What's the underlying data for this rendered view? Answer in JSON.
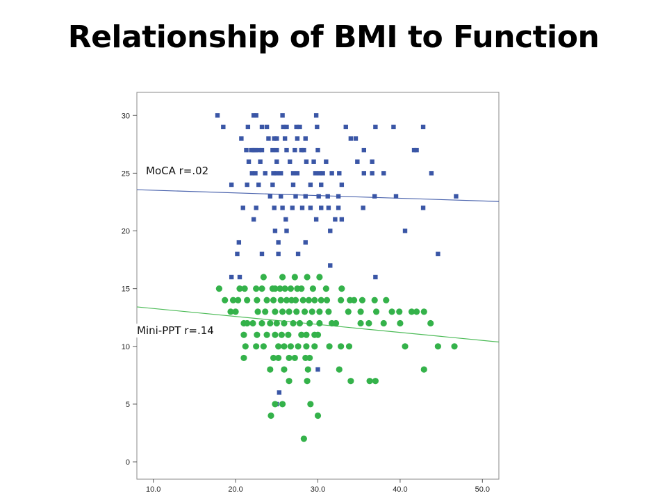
{
  "slide": {
    "title": "Relationship of BMI to Function"
  },
  "chart_data": {
    "type": "scatter",
    "title": "",
    "xlabel": "",
    "ylabel": "",
    "xlim": [
      8,
      52
    ],
    "ylim": [
      -1.5,
      32
    ],
    "x_ticks": [
      10,
      20,
      30,
      40,
      50
    ],
    "x_tick_labels": [
      "10.0",
      "20.0",
      "30.0",
      "40.0",
      "50.0"
    ],
    "y_ticks": [
      0,
      5,
      10,
      15,
      20,
      25,
      30
    ],
    "y_tick_labels": [
      "0",
      "5",
      "10",
      "15",
      "20",
      "25",
      "30"
    ],
    "grid": false,
    "plot_background": "#ffffff",
    "frame_color": "#888888",
    "series": [
      {
        "name": "MoCA",
        "marker": "square",
        "color": "#3a56a6",
        "points": [
          [
            17.8,
            30
          ],
          [
            22.2,
            30
          ],
          [
            22.5,
            30
          ],
          [
            25.7,
            30
          ],
          [
            29.8,
            30
          ],
          [
            18.5,
            29
          ],
          [
            21.5,
            29
          ],
          [
            23.2,
            29
          ],
          [
            23.8,
            29
          ],
          [
            25.8,
            29
          ],
          [
            26.2,
            29
          ],
          [
            27.4,
            29
          ],
          [
            27.8,
            29
          ],
          [
            29.9,
            29
          ],
          [
            33.4,
            29
          ],
          [
            37.0,
            29
          ],
          [
            39.2,
            29
          ],
          [
            42.8,
            29
          ],
          [
            20.7,
            28
          ],
          [
            24.0,
            28
          ],
          [
            24.7,
            28
          ],
          [
            25.0,
            28
          ],
          [
            26.0,
            28
          ],
          [
            27.5,
            28
          ],
          [
            28.5,
            28
          ],
          [
            34.0,
            28
          ],
          [
            34.6,
            28
          ],
          [
            22.2,
            27
          ],
          [
            23.2,
            27
          ],
          [
            25.0,
            27
          ],
          [
            26.2,
            27
          ],
          [
            28.0,
            27
          ],
          [
            21.3,
            27
          ],
          [
            21.9,
            27
          ],
          [
            22.4,
            27
          ],
          [
            22.8,
            27
          ],
          [
            24.5,
            27
          ],
          [
            27.2,
            27
          ],
          [
            28.3,
            27
          ],
          [
            30.0,
            27
          ],
          [
            35.6,
            27
          ],
          [
            41.7,
            27
          ],
          [
            42.0,
            27
          ],
          [
            21.6,
            26
          ],
          [
            23.0,
            26
          ],
          [
            25.0,
            26
          ],
          [
            26.6,
            26
          ],
          [
            28.6,
            26
          ],
          [
            29.5,
            26
          ],
          [
            31.0,
            26
          ],
          [
            34.8,
            26
          ],
          [
            36.6,
            26
          ],
          [
            22.0,
            25
          ],
          [
            22.4,
            25
          ],
          [
            23.6,
            25
          ],
          [
            24.6,
            25
          ],
          [
            25.0,
            25
          ],
          [
            25.5,
            25
          ],
          [
            27.0,
            25
          ],
          [
            27.5,
            25
          ],
          [
            29.7,
            25
          ],
          [
            30.2,
            25
          ],
          [
            30.6,
            25
          ],
          [
            31.7,
            25
          ],
          [
            32.6,
            25
          ],
          [
            35.6,
            25
          ],
          [
            36.6,
            25
          ],
          [
            38.0,
            25
          ],
          [
            43.8,
            25
          ],
          [
            19.5,
            24
          ],
          [
            21.4,
            24
          ],
          [
            22.8,
            24
          ],
          [
            24.5,
            24
          ],
          [
            27.0,
            24
          ],
          [
            29.1,
            24
          ],
          [
            30.4,
            24
          ],
          [
            32.9,
            24
          ],
          [
            24.2,
            23
          ],
          [
            25.5,
            23
          ],
          [
            27.3,
            23
          ],
          [
            28.5,
            23
          ],
          [
            30.1,
            23
          ],
          [
            31.2,
            23
          ],
          [
            32.5,
            23
          ],
          [
            36.9,
            23
          ],
          [
            39.5,
            23
          ],
          [
            46.8,
            23
          ],
          [
            20.9,
            22
          ],
          [
            22.5,
            22
          ],
          [
            24.7,
            22
          ],
          [
            25.7,
            22
          ],
          [
            26.9,
            22
          ],
          [
            28.1,
            22
          ],
          [
            29.1,
            22
          ],
          [
            30.4,
            22
          ],
          [
            31.3,
            22
          ],
          [
            32.5,
            22
          ],
          [
            35.5,
            22
          ],
          [
            42.8,
            22
          ],
          [
            22.2,
            21
          ],
          [
            26.1,
            21
          ],
          [
            29.8,
            21
          ],
          [
            32.1,
            21
          ],
          [
            32.9,
            21
          ],
          [
            24.8,
            20
          ],
          [
            26.2,
            20
          ],
          [
            31.5,
            20
          ],
          [
            40.6,
            20
          ],
          [
            20.4,
            19
          ],
          [
            25.2,
            19
          ],
          [
            28.5,
            19
          ],
          [
            20.2,
            18
          ],
          [
            23.2,
            18
          ],
          [
            25.2,
            18
          ],
          [
            27.6,
            18
          ],
          [
            44.6,
            18
          ],
          [
            31.5,
            17
          ],
          [
            19.5,
            16
          ],
          [
            20.5,
            16
          ],
          [
            37.0,
            16
          ],
          [
            30.0,
            8
          ],
          [
            25.3,
            6
          ],
          [
            25.0,
            5
          ]
        ],
        "trend": {
          "label": "MoCA r=.02",
          "color": "#4a63ad",
          "x": [
            8,
            52
          ],
          "y": [
            23.57,
            22.55
          ]
        }
      },
      {
        "name": "Mini-PPT",
        "marker": "circle",
        "color": "#34b24a",
        "points": [
          [
            18.0,
            15
          ],
          [
            20.5,
            15
          ],
          [
            21.1,
            15
          ],
          [
            22.5,
            15
          ],
          [
            23.2,
            15
          ],
          [
            24.5,
            15
          ],
          [
            24.8,
            15
          ],
          [
            25.4,
            15
          ],
          [
            26.0,
            15
          ],
          [
            26.7,
            15
          ],
          [
            27.5,
            15
          ],
          [
            28.0,
            15
          ],
          [
            29.4,
            15
          ],
          [
            31.0,
            15
          ],
          [
            32.9,
            15
          ],
          [
            23.4,
            16
          ],
          [
            25.7,
            16
          ],
          [
            27.2,
            16
          ],
          [
            28.7,
            16
          ],
          [
            30.2,
            16
          ],
          [
            18.7,
            14
          ],
          [
            19.7,
            14
          ],
          [
            20.3,
            14
          ],
          [
            21.4,
            14
          ],
          [
            22.6,
            14
          ],
          [
            23.8,
            14
          ],
          [
            24.6,
            14
          ],
          [
            25.5,
            14
          ],
          [
            26.2,
            14
          ],
          [
            26.8,
            14
          ],
          [
            27.3,
            14
          ],
          [
            28.2,
            14
          ],
          [
            28.9,
            14
          ],
          [
            29.6,
            14
          ],
          [
            30.4,
            14
          ],
          [
            31.1,
            14
          ],
          [
            32.8,
            14
          ],
          [
            33.9,
            14
          ],
          [
            34.4,
            14
          ],
          [
            35.4,
            14
          ],
          [
            36.9,
            14
          ],
          [
            38.3,
            14
          ],
          [
            19.4,
            13
          ],
          [
            20.0,
            13
          ],
          [
            22.7,
            13
          ],
          [
            23.6,
            13
          ],
          [
            24.8,
            13
          ],
          [
            25.7,
            13
          ],
          [
            26.5,
            13
          ],
          [
            27.4,
            13
          ],
          [
            28.4,
            13
          ],
          [
            29.3,
            13
          ],
          [
            30.2,
            13
          ],
          [
            31.3,
            13
          ],
          [
            33.7,
            13
          ],
          [
            35.2,
            13
          ],
          [
            37.1,
            13
          ],
          [
            39.0,
            13
          ],
          [
            39.9,
            13
          ],
          [
            41.4,
            13
          ],
          [
            42.0,
            13
          ],
          [
            42.9,
            13
          ],
          [
            21.0,
            12
          ],
          [
            21.4,
            12
          ],
          [
            22.1,
            12
          ],
          [
            23.2,
            12
          ],
          [
            24.2,
            12
          ],
          [
            25.0,
            12
          ],
          [
            25.9,
            12
          ],
          [
            27.0,
            12
          ],
          [
            27.8,
            12
          ],
          [
            29.0,
            12
          ],
          [
            30.2,
            12
          ],
          [
            31.7,
            12
          ],
          [
            32.2,
            12
          ],
          [
            35.2,
            12
          ],
          [
            36.2,
            12
          ],
          [
            38.0,
            12
          ],
          [
            40.0,
            12
          ],
          [
            43.7,
            12
          ],
          [
            21.0,
            11
          ],
          [
            22.6,
            11
          ],
          [
            23.8,
            11
          ],
          [
            24.8,
            11
          ],
          [
            25.6,
            11
          ],
          [
            26.4,
            11
          ],
          [
            28.0,
            11
          ],
          [
            28.6,
            11
          ],
          [
            29.6,
            11
          ],
          [
            30.0,
            11
          ],
          [
            21.2,
            10
          ],
          [
            22.5,
            10
          ],
          [
            23.4,
            10
          ],
          [
            25.2,
            10
          ],
          [
            25.9,
            10
          ],
          [
            26.7,
            10
          ],
          [
            27.6,
            10
          ],
          [
            28.6,
            10
          ],
          [
            29.6,
            10
          ],
          [
            31.4,
            10
          ],
          [
            32.8,
            10
          ],
          [
            33.8,
            10
          ],
          [
            40.6,
            10
          ],
          [
            44.6,
            10
          ],
          [
            46.6,
            10
          ],
          [
            21.0,
            9
          ],
          [
            24.6,
            9
          ],
          [
            25.2,
            9
          ],
          [
            26.5,
            9
          ],
          [
            27.2,
            9
          ],
          [
            28.5,
            9
          ],
          [
            29.0,
            9
          ],
          [
            24.2,
            8
          ],
          [
            25.9,
            8
          ],
          [
            28.8,
            8
          ],
          [
            32.6,
            8
          ],
          [
            42.9,
            8
          ],
          [
            26.5,
            7
          ],
          [
            28.7,
            7
          ],
          [
            34.0,
            7
          ],
          [
            36.3,
            7
          ],
          [
            37.0,
            7
          ],
          [
            24.8,
            5
          ],
          [
            25.7,
            5
          ],
          [
            29.1,
            5
          ],
          [
            24.3,
            4
          ],
          [
            30.0,
            4
          ],
          [
            28.3,
            2
          ]
        ],
        "trend": {
          "label": "Mini-PPT r=.14",
          "color": "#4cbb57",
          "x": [
            8,
            52
          ],
          "y": [
            13.42,
            10.38
          ]
        }
      }
    ]
  }
}
